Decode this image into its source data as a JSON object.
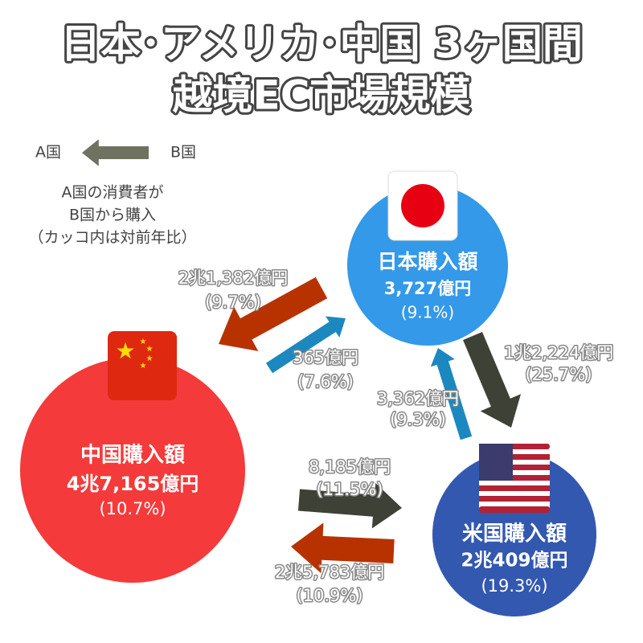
{
  "header": {
    "title_lines": [
      "日本･アメリカ･中国 3ヶ国間",
      "越境EC市場規模"
    ]
  },
  "legend": {
    "to": "A国",
    "from": "B国",
    "note_lines": [
      "A国の消費者が",
      "B国から購入",
      "（カッコ内は対前年比）"
    ]
  },
  "nodes": [
    {
      "label": "日本購入額",
      "amount": "3,727億円",
      "growth": "(9.1%)"
    },
    {
      "label": "中国購入額",
      "amount": "4兆7,165億円",
      "growth": "(10.7%)"
    },
    {
      "label": "米国購入額",
      "amount": "2兆409億円",
      "growth": "(19.3%)"
    }
  ],
  "flows": [
    {
      "amount": "2兆1,382億円",
      "growth": "(9.7%)"
    },
    {
      "amount": "365億円",
      "growth": "(7.6%)"
    },
    {
      "amount": "1兆2,224億円",
      "growth": "(25.7%)"
    },
    {
      "amount": "3,362億円",
      "growth": "(9.3%)"
    },
    {
      "amount": "8,185億円",
      "growth": "(11.5%)"
    },
    {
      "amount": "2兆5,783億円",
      "growth": "(10.9%)"
    }
  ]
}
